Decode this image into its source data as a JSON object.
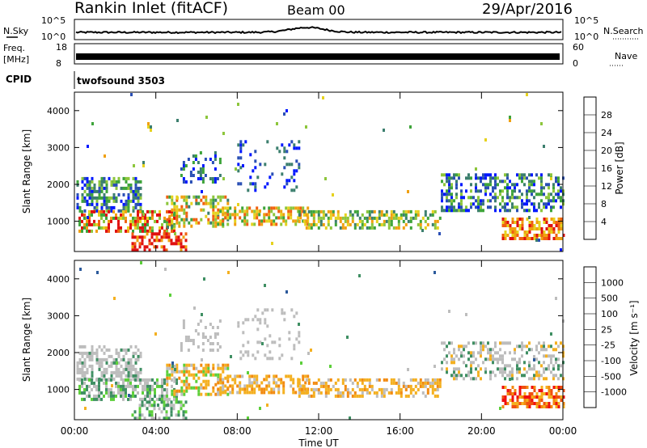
{
  "header": {
    "title": "Rankin Inlet (fitACF)",
    "beam": "Beam 00",
    "date": "29/Apr/2016"
  },
  "strips": {
    "nsky_label": "N.Sky",
    "nsky_ticks": [
      "10^5",
      "10^0"
    ],
    "nsearch_label": "N.Search",
    "freq_label_1": "Freq.",
    "freq_label_2": "[MHz]",
    "freq_ticks": [
      "18",
      "8"
    ],
    "nave_label": "Nave",
    "nave_ticks": [
      "60",
      "0"
    ],
    "cpid_label": "CPID",
    "cpid_value": "twofsound 3503"
  },
  "colors": {
    "power_scale": [
      "#0018ff",
      "#2a4fb5",
      "#3c7f6e",
      "#3ea43a",
      "#8dc63c",
      "#e6d21e",
      "#f0a010",
      "#f06010",
      "#e01010"
    ],
    "velocity_scale": [
      "#f01010",
      "#f05010",
      "#f28a10",
      "#f4b020",
      "#bdbdbd",
      "#bdbdbd",
      "#5ccf3a",
      "#3f8f63",
      "#2c5a9b",
      "#1030d8"
    ]
  },
  "chart_data": [
    {
      "type": "heatmap",
      "name": "power",
      "ylabel": "Slant Range [km]",
      "yticks": [
        1000,
        2000,
        3000,
        4000
      ],
      "ylim": [
        180,
        4500
      ],
      "xlim_hours": [
        0,
        24
      ],
      "colorbar_label": "Power [dB]",
      "colorbar_ticks": [
        "4",
        "8",
        "12",
        "16",
        "20",
        "24",
        "28"
      ],
      "colorbar_range": [
        0,
        30
      ]
    },
    {
      "type": "heatmap",
      "name": "velocity",
      "ylabel": "Slant Range [km]",
      "yticks": [
        1000,
        2000,
        3000,
        4000
      ],
      "ylim": [
        180,
        4500
      ],
      "xlabel": "Time UT",
      "xticks": [
        "00:00",
        "04:00",
        "08:00",
        "12:00",
        "16:00",
        "20:00",
        "00:00"
      ],
      "xlim_hours": [
        0,
        24
      ],
      "colorbar_label": "Velocity [m s⁻¹]",
      "colorbar_ticks": [
        "-1000",
        "-500",
        "-100",
        "-25",
        "25",
        "100",
        "500",
        "1000"
      ]
    }
  ]
}
